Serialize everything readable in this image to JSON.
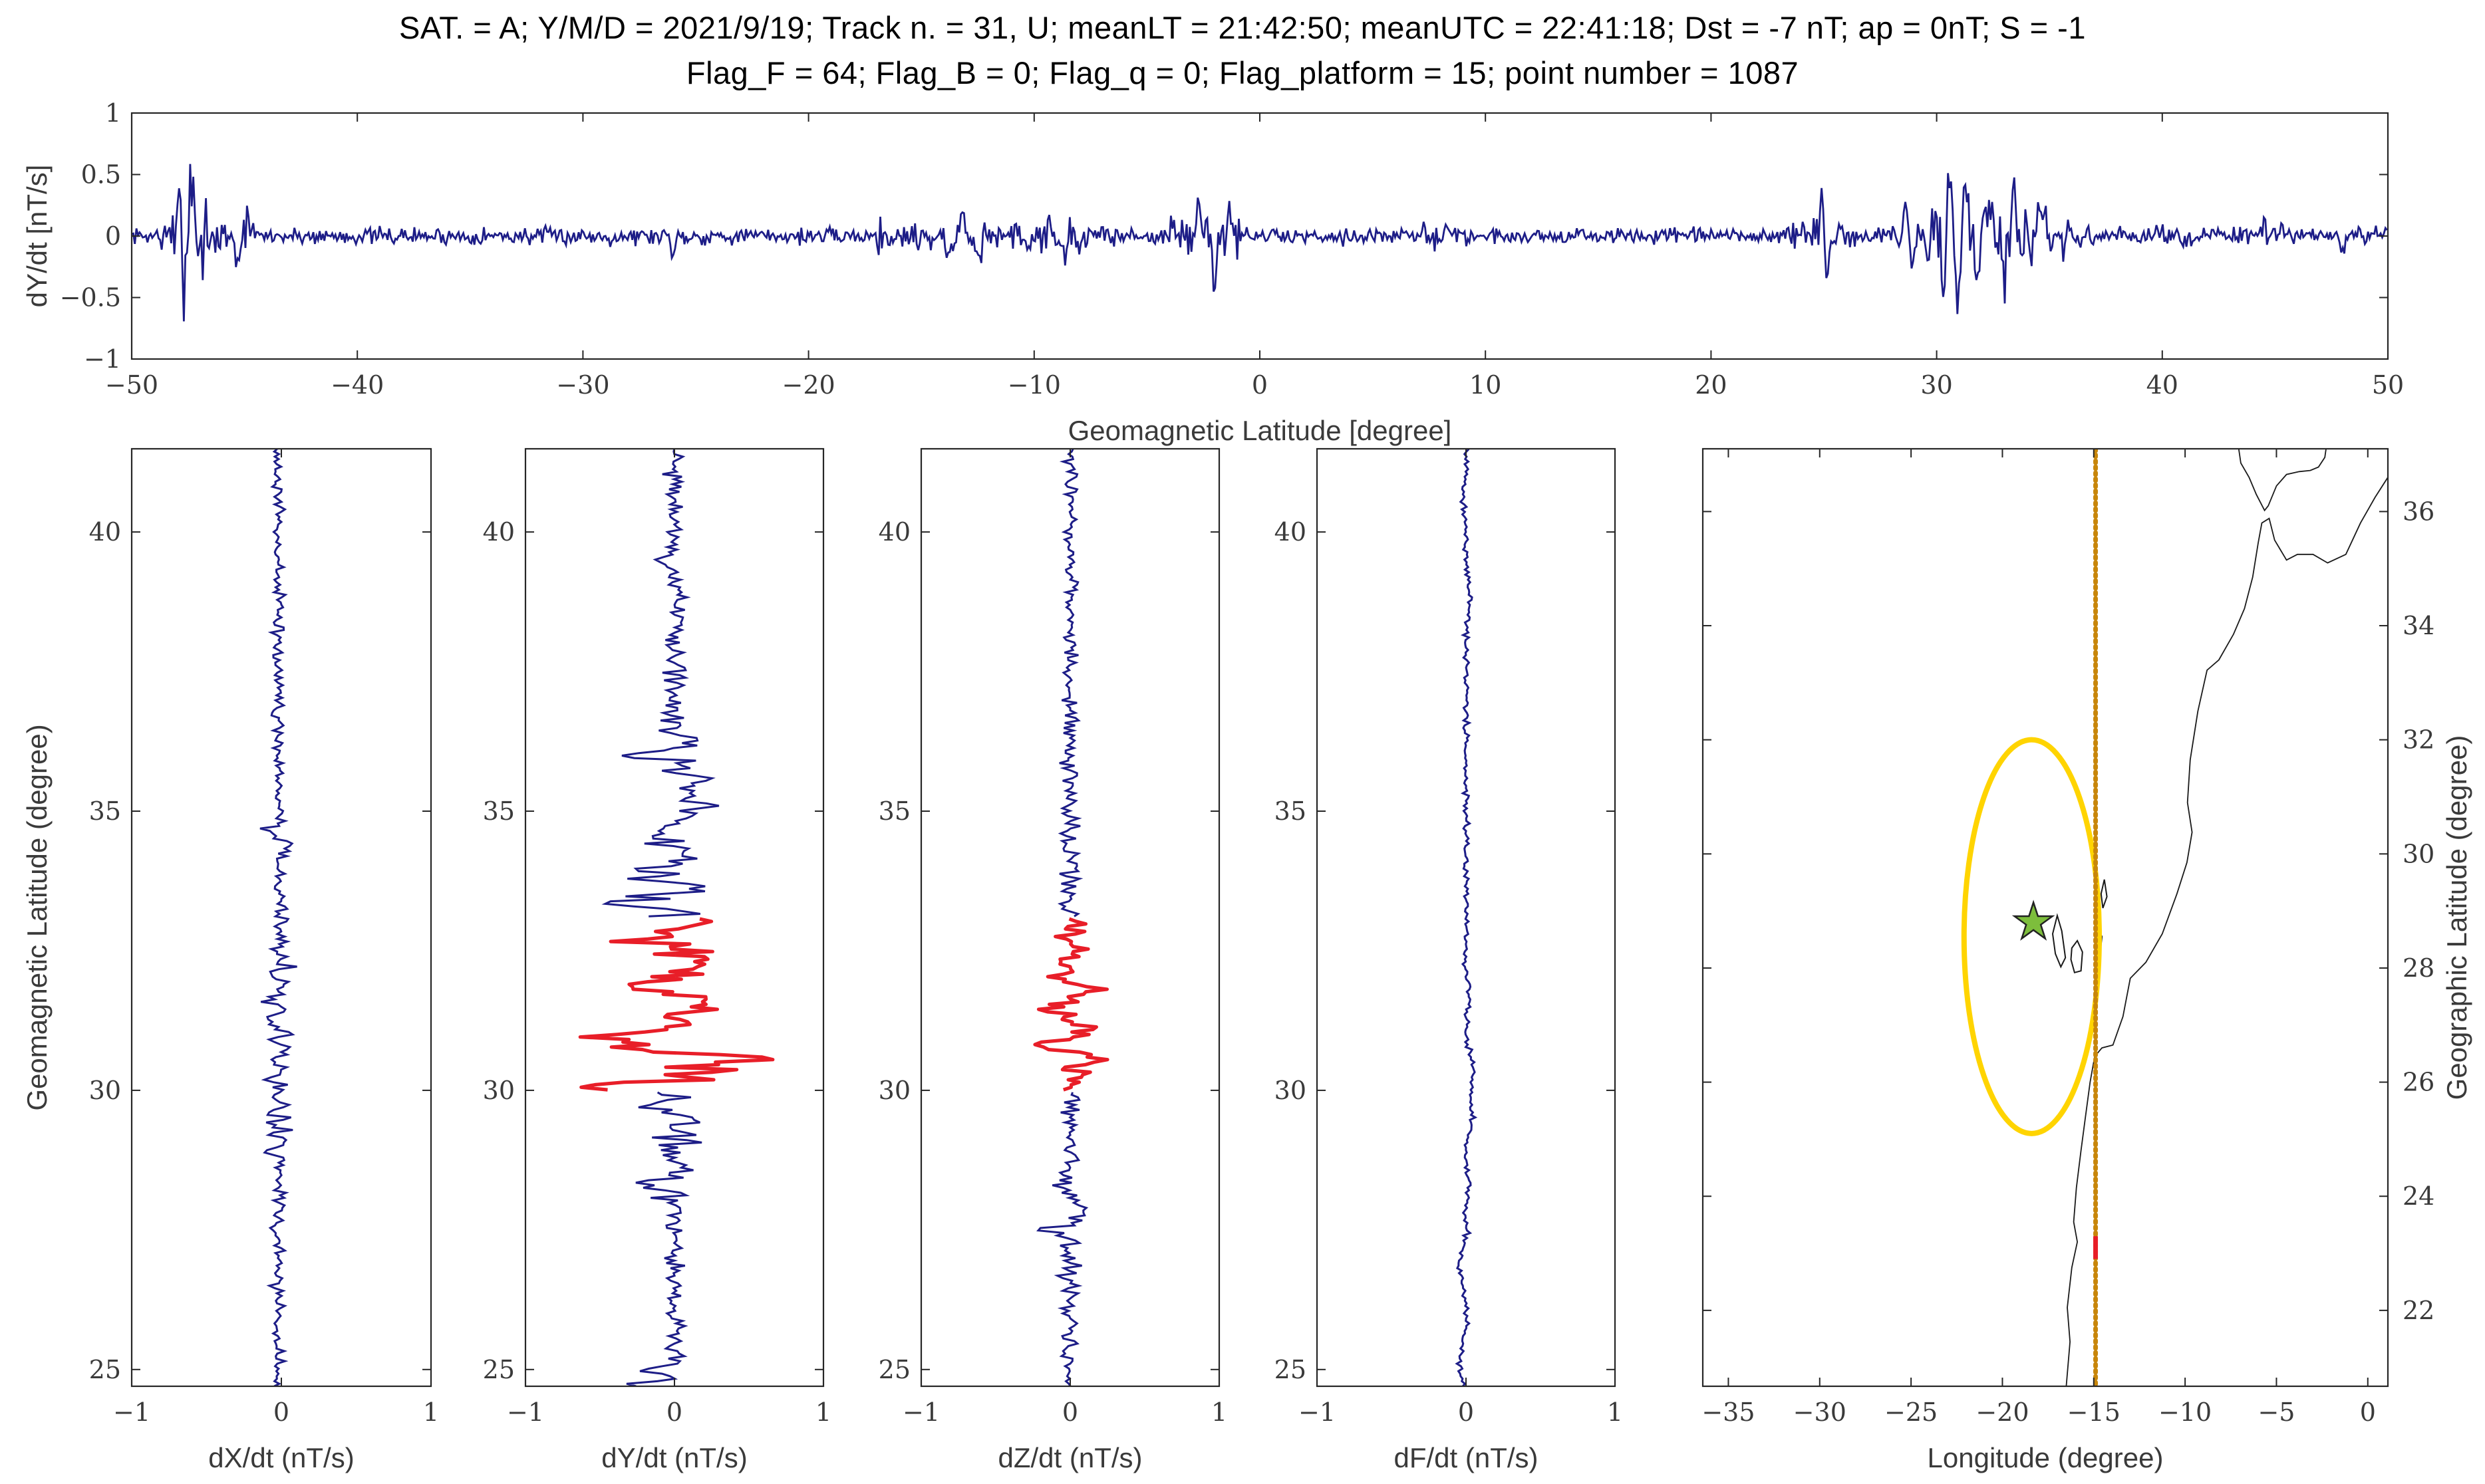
{
  "title": {
    "line1": "SAT. = A; Y/M/D = 2021/9/19; Track n. = 31, U; meanLT = 21:42:50; meanUTC = 22:41:18; Dst = -7 nT; ap = 0nT; S = -1",
    "line2": "Flag_F = 64; Flag_B = 0; Flag_q = 0; Flag_platform = 15; point number = 1087"
  },
  "colors": {
    "series": "#1d1d87",
    "highlight": "#e81e28",
    "ellipse": "#ffd400",
    "track": "#c8860b",
    "star_fill": "#7dbe3c",
    "star_edge": "#222222",
    "coast": "#1a1a1a",
    "axis": "#262626",
    "tick_label": "#3a3a3a",
    "title": "#000000"
  },
  "chart_data": [
    {
      "id": "top-dydt",
      "type": "line",
      "orientation": "horizontal",
      "xlabel": "Geomagnetic Latitude [degree]",
      "ylabel": "dY/dt [nT/s]",
      "xlim": [
        -50,
        50
      ],
      "ylim": [
        -1,
        1
      ],
      "xticks": [
        -50,
        -40,
        -30,
        -20,
        -10,
        0,
        10,
        20,
        30,
        40,
        50
      ],
      "yticks": [
        -1,
        -0.5,
        0,
        0.5,
        1
      ],
      "seed": 7,
      "step": 0.07,
      "spike_width": 0.18,
      "offset": 0,
      "envelope": [
        [
          -50,
          -49,
          0.05
        ],
        [
          -49,
          -48.3,
          0.1
        ],
        [
          -48.3,
          -46.6,
          0.36
        ],
        [
          -46.6,
          -45.8,
          0.16
        ],
        [
          -45.8,
          -44.6,
          0.11
        ],
        [
          -44.6,
          -30,
          0.055
        ],
        [
          -30,
          -24,
          0.06
        ],
        [
          -24,
          -17,
          0.05
        ],
        [
          -17,
          -11.5,
          0.11
        ],
        [
          -11.5,
          -7.5,
          0.12
        ],
        [
          -7.5,
          -4,
          0.065
        ],
        [
          -4,
          -0.8,
          0.14
        ],
        [
          -0.8,
          7,
          0.05
        ],
        [
          7,
          9.5,
          0.075
        ],
        [
          9.5,
          23,
          0.05
        ],
        [
          23,
          26.5,
          0.1
        ],
        [
          26.5,
          28,
          0.07
        ],
        [
          28,
          29.5,
          0.11
        ],
        [
          29.5,
          32.5,
          0.26
        ],
        [
          32.5,
          35,
          0.2
        ],
        [
          35,
          36.5,
          0.12
        ],
        [
          36.5,
          43,
          0.06
        ],
        [
          43,
          46,
          0.075
        ],
        [
          46,
          50,
          0.055
        ]
      ],
      "spikes": [
        [
          -47.9,
          0.42
        ],
        [
          -47.65,
          -0.5
        ],
        [
          -47.35,
          0.38
        ],
        [
          -47.05,
          -0.46
        ],
        [
          -46.8,
          0.3
        ],
        [
          -45.3,
          -0.27
        ],
        [
          -44.85,
          0.17
        ],
        [
          -26,
          -0.15
        ],
        [
          -13.8,
          -0.27
        ],
        [
          -13.2,
          0.2
        ],
        [
          -12.4,
          -0.22
        ],
        [
          -9.3,
          0.2
        ],
        [
          -8.6,
          -0.26
        ],
        [
          -2.7,
          0.27
        ],
        [
          -2.0,
          -0.34
        ],
        [
          -1.35,
          0.26
        ],
        [
          8.3,
          0.12
        ],
        [
          24.9,
          0.3
        ],
        [
          25.15,
          -0.4
        ],
        [
          28.6,
          0.33
        ],
        [
          28.9,
          -0.3
        ],
        [
          30.3,
          -0.46
        ],
        [
          30.55,
          0.7
        ],
        [
          30.9,
          -0.6
        ],
        [
          31.3,
          0.44
        ],
        [
          31.8,
          -0.36
        ],
        [
          32.2,
          0.4
        ],
        [
          33.0,
          -0.38
        ],
        [
          33.45,
          0.34
        ],
        [
          34.2,
          -0.3
        ],
        [
          34.6,
          0.26
        ],
        [
          35.6,
          -0.2
        ],
        [
          44.5,
          0.12
        ],
        [
          48.0,
          -0.15
        ]
      ],
      "red_range": null
    },
    {
      "id": "panel-dxdt",
      "type": "line",
      "orientation": "vertical",
      "xlabel": "dX/dt (nT/s)",
      "ylabel": "Geomagnetic Latitude (degree)",
      "xlim": [
        -1,
        1
      ],
      "ylim": [
        24.7,
        41.49
      ],
      "xticks": [
        -1,
        0,
        1
      ],
      "yticks": [
        25,
        30,
        35,
        40
      ],
      "seed": 11,
      "step": 0.045,
      "spike_width": 0.12,
      "offset": -0.02,
      "envelope": [
        [
          24.7,
          27.5,
          0.035
        ],
        [
          27.5,
          29,
          0.05
        ],
        [
          29,
          32.5,
          0.07
        ],
        [
          32.5,
          34.8,
          0.05
        ],
        [
          34.8,
          38,
          0.035
        ],
        [
          38,
          41.5,
          0.03
        ]
      ],
      "spikes": [
        [
          28.9,
          -0.1
        ],
        [
          30.2,
          -0.12
        ],
        [
          31.0,
          0.1
        ],
        [
          31.6,
          -0.1
        ],
        [
          34.4,
          0.09
        ],
        [
          34.65,
          -0.08
        ]
      ],
      "red_range": null
    },
    {
      "id": "panel-dydt",
      "type": "line",
      "orientation": "vertical",
      "xlabel": "dY/dt (nT/s)",
      "ylabel": "",
      "xlim": [
        -1,
        1
      ],
      "ylim": [
        24.7,
        41.49
      ],
      "xticks": [
        -1,
        0,
        1
      ],
      "yticks": [
        25,
        30,
        35,
        40
      ],
      "seed": 13,
      "step": 0.045,
      "spike_width": 0.12,
      "offset": 0,
      "envelope": [
        [
          24.7,
          25.3,
          0.07
        ],
        [
          25.3,
          27.9,
          0.045
        ],
        [
          27.9,
          28.9,
          0.1
        ],
        [
          28.9,
          30,
          0.14
        ],
        [
          30,
          33.1,
          0.2
        ],
        [
          33.1,
          34.6,
          0.2
        ],
        [
          34.6,
          36.3,
          0.15
        ],
        [
          36.3,
          37.3,
          0.08
        ],
        [
          37.3,
          39.6,
          0.06
        ],
        [
          39.6,
          41.5,
          0.045
        ]
      ],
      "spikes": [
        [
          24.72,
          -0.3
        ],
        [
          24.98,
          -0.2
        ],
        [
          28.35,
          -0.27
        ],
        [
          28.62,
          0.12
        ],
        [
          29.4,
          0.17
        ],
        [
          29.72,
          -0.2
        ],
        [
          30.06,
          -0.67
        ],
        [
          30.35,
          0.25
        ],
        [
          30.56,
          0.72
        ],
        [
          30.76,
          -0.4
        ],
        [
          30.96,
          -0.55
        ],
        [
          31.2,
          0.3
        ],
        [
          31.56,
          0.47
        ],
        [
          31.9,
          -0.3
        ],
        [
          32.3,
          0.28
        ],
        [
          32.7,
          -0.25
        ],
        [
          33.0,
          0.2
        ],
        [
          33.36,
          -0.42
        ],
        [
          33.62,
          0.3
        ],
        [
          33.92,
          -0.35
        ],
        [
          34.3,
          0.3
        ],
        [
          34.52,
          -0.28
        ],
        [
          35.12,
          0.22
        ],
        [
          35.55,
          0.25
        ],
        [
          36.0,
          -0.42
        ],
        [
          36.25,
          0.2
        ],
        [
          39.5,
          -0.12
        ]
      ],
      "red_range": [
        30.0,
        33.1
      ]
    },
    {
      "id": "panel-dzdt",
      "type": "line",
      "orientation": "vertical",
      "xlabel": "dZ/dt (nT/s)",
      "ylabel": "",
      "xlim": [
        -1,
        1
      ],
      "ylim": [
        24.7,
        41.49
      ],
      "xticks": [
        -1,
        0,
        1
      ],
      "yticks": [
        25,
        30,
        35,
        40
      ],
      "seed": 17,
      "step": 0.045,
      "spike_width": 0.12,
      "offset": 0,
      "envelope": [
        [
          24.7,
          27.2,
          0.05
        ],
        [
          27.2,
          28.6,
          0.075
        ],
        [
          28.6,
          30,
          0.055
        ],
        [
          30,
          33.1,
          0.09
        ],
        [
          33.1,
          36,
          0.05
        ],
        [
          36,
          41.5,
          0.04
        ]
      ],
      "spikes": [
        [
          27.5,
          -0.16
        ],
        [
          27.9,
          0.1
        ],
        [
          28.3,
          -0.12
        ],
        [
          30.3,
          0.12
        ],
        [
          30.56,
          0.27
        ],
        [
          30.8,
          -0.28
        ],
        [
          31.1,
          0.15
        ],
        [
          31.42,
          -0.12
        ],
        [
          31.8,
          0.18
        ],
        [
          32.1,
          -0.1
        ],
        [
          32.5,
          0.12
        ],
        [
          33.3,
          -0.08
        ]
      ],
      "red_range": [
        30.0,
        33.1
      ]
    },
    {
      "id": "panel-dfdt",
      "type": "line",
      "orientation": "vertical",
      "xlabel": "dF/dt (nT/s)",
      "ylabel": "",
      "xlim": [
        -1,
        1
      ],
      "ylim": [
        24.7,
        41.49
      ],
      "xticks": [
        -1,
        0,
        1
      ],
      "yticks": [
        25,
        30,
        35,
        40
      ],
      "seed": 23,
      "step": 0.045,
      "spike_width": 0.6,
      "offset": 0,
      "envelope": [
        [
          24.7,
          41.5,
          0.016
        ]
      ],
      "spikes": [
        [
          25.1,
          -0.045
        ],
        [
          26.8,
          -0.05
        ],
        [
          28.2,
          0.02
        ],
        [
          29.6,
          0.05
        ],
        [
          30.4,
          0.055
        ],
        [
          31.6,
          0.02
        ],
        [
          38.9,
          0.03
        ],
        [
          40.5,
          -0.02
        ]
      ],
      "red_range": null
    },
    {
      "id": "map-panel",
      "type": "map",
      "xlabel": "Longitude (degree)",
      "ylabel_right": "Geographic Latitude (degree)",
      "xlim": [
        -36.4,
        1.1
      ],
      "ylim": [
        20.67,
        37.1
      ],
      "xticks": [
        -35,
        -30,
        -25,
        -20,
        -15,
        -10,
        -5,
        0
      ],
      "yticks": [
        22,
        24,
        26,
        28,
        30,
        32,
        34,
        36
      ],
      "coastlines": [
        [
          [
            -7.2,
            37.4
          ],
          [
            -6.95,
            36.85
          ],
          [
            -6.5,
            36.6
          ],
          [
            -6.1,
            36.3
          ],
          [
            -5.65,
            36.02
          ],
          [
            -5.45,
            36.1
          ],
          [
            -5.0,
            36.45
          ],
          [
            -4.45,
            36.65
          ],
          [
            -3.75,
            36.7
          ],
          [
            -3.15,
            36.72
          ],
          [
            -2.7,
            36.78
          ],
          [
            -2.35,
            36.95
          ],
          [
            -2.15,
            37.4
          ]
        ],
        [
          [
            1.1,
            36.6
          ],
          [
            0.4,
            36.25
          ],
          [
            -0.4,
            35.8
          ],
          [
            -1.2,
            35.25
          ],
          [
            -2.2,
            35.1
          ],
          [
            -3.0,
            35.25
          ],
          [
            -3.85,
            35.25
          ],
          [
            -4.45,
            35.15
          ],
          [
            -5.1,
            35.5
          ],
          [
            -5.4,
            35.88
          ],
          [
            -5.8,
            35.8
          ],
          [
            -6.0,
            35.45
          ],
          [
            -6.3,
            34.85
          ],
          [
            -6.75,
            34.3
          ],
          [
            -7.35,
            33.85
          ],
          [
            -8.15,
            33.4
          ],
          [
            -8.8,
            33.22
          ],
          [
            -9.3,
            32.5
          ],
          [
            -9.72,
            31.65
          ],
          [
            -9.87,
            30.9
          ],
          [
            -9.62,
            30.38
          ],
          [
            -9.9,
            29.85
          ],
          [
            -10.45,
            29.3
          ],
          [
            -11.25,
            28.6
          ],
          [
            -12.15,
            28.1
          ],
          [
            -13.0,
            27.82
          ],
          [
            -13.4,
            27.15
          ],
          [
            -13.95,
            26.65
          ],
          [
            -14.55,
            26.6
          ],
          [
            -14.95,
            26.45
          ],
          [
            -15.2,
            26.0
          ],
          [
            -15.45,
            25.4
          ],
          [
            -15.7,
            24.8
          ],
          [
            -15.95,
            24.15
          ],
          [
            -16.1,
            23.55
          ],
          [
            -15.9,
            23.2
          ],
          [
            -16.2,
            22.75
          ],
          [
            -16.45,
            22.05
          ],
          [
            -16.3,
            21.45
          ],
          [
            -16.55,
            20.5
          ]
        ]
      ],
      "islands": [
        [
          [
            -17.25,
            28.6
          ],
          [
            -17.0,
            28.92
          ],
          [
            -16.75,
            28.65
          ],
          [
            -16.55,
            28.18
          ],
          [
            -16.8,
            28.02
          ],
          [
            -17.1,
            28.25
          ]
        ],
        [
          [
            -16.2,
            28.35
          ],
          [
            -15.9,
            28.48
          ],
          [
            -15.62,
            28.28
          ],
          [
            -15.7,
            27.95
          ],
          [
            -16.05,
            27.92
          ],
          [
            -16.25,
            28.15
          ]
        ],
        [
          [
            -14.95,
            28.25
          ],
          [
            -14.75,
            28.68
          ],
          [
            -14.55,
            28.55
          ],
          [
            -14.7,
            28.12
          ]
        ],
        [
          [
            -14.6,
            29.3
          ],
          [
            -14.42,
            29.55
          ],
          [
            -14.28,
            29.25
          ],
          [
            -14.5,
            29.05
          ]
        ]
      ],
      "ellipse": {
        "cx": -18.4,
        "cy": 28.55,
        "rx": 3.7,
        "ry": 3.45
      },
      "star": {
        "lon": -18.3,
        "lat": 28.8
      },
      "track": {
        "lon": -14.9
      },
      "track_highlight": {
        "lat_from": 22.9,
        "lat_to": 23.3
      }
    }
  ]
}
